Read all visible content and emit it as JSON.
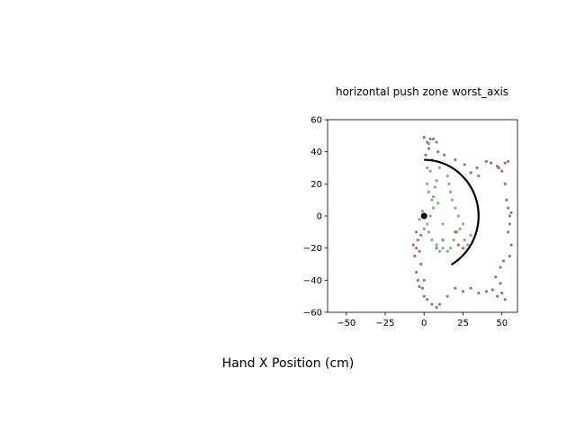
{
  "chart_data": {
    "type": "scatter",
    "title": "horizontal push zone worst_axis",
    "xlabel": "Hand X Position (cm)",
    "ylabel": "",
    "xlim": [
      -62,
      60
    ],
    "ylim": [
      -60,
      60
    ],
    "x_ticks": [
      -50,
      -25,
      0,
      25,
      50
    ],
    "y_ticks": [
      -60,
      -40,
      -20,
      0,
      20,
      40,
      60
    ],
    "x_tick_labels": [
      "−50",
      "−25",
      "0",
      "25",
      "50"
    ],
    "y_tick_labels": [
      "−60",
      "−40",
      "−20",
      "0",
      "20",
      "40",
      "60"
    ],
    "grid": false,
    "colors": {
      "outside": "#6b0f2a",
      "inside": "#1a8a1a",
      "arc": "#000000",
      "center": "#000000"
    },
    "center_point": {
      "x": 0,
      "y": 0
    },
    "arc": {
      "cx": 0,
      "cy": 0,
      "r": 35,
      "start_deg": -60,
      "end_deg": 90
    },
    "series": [
      {
        "values": [
          [
            0,
            49
          ],
          [
            2,
            46
          ],
          [
            4,
            48
          ],
          [
            6,
            48
          ],
          [
            8,
            46
          ],
          [
            3,
            42
          ],
          [
            1,
            38
          ],
          [
            9,
            40
          ],
          [
            13,
            38
          ],
          [
            20,
            35
          ],
          [
            26,
            32
          ],
          [
            30,
            27
          ],
          [
            35,
            25
          ],
          [
            34,
            30
          ],
          [
            40,
            34
          ],
          [
            43,
            33
          ],
          [
            47,
            31
          ],
          [
            52,
            33
          ],
          [
            54,
            34
          ],
          [
            50,
            28
          ],
          [
            48,
            30
          ],
          [
            52,
            20
          ],
          [
            53,
            10
          ],
          [
            54,
            5
          ],
          [
            55,
            0
          ],
          [
            56,
            2
          ],
          [
            55,
            -5
          ],
          [
            54,
            -10
          ],
          [
            56,
            -18
          ],
          [
            55,
            -25
          ],
          [
            51,
            -28
          ],
          [
            49,
            -32
          ],
          [
            46,
            -38
          ],
          [
            49,
            -42
          ],
          [
            50,
            -48
          ],
          [
            52,
            -52
          ],
          [
            47,
            -50
          ],
          [
            44,
            -46
          ],
          [
            40,
            -47
          ],
          [
            35,
            -48
          ],
          [
            30,
            -45
          ],
          [
            25,
            -47
          ],
          [
            20,
            -45
          ],
          [
            15,
            -50
          ],
          [
            10,
            -55
          ],
          [
            8,
            -57
          ],
          [
            5,
            -55
          ],
          [
            2,
            -52
          ],
          [
            0,
            -50
          ],
          [
            -1,
            -45
          ],
          [
            0,
            -40
          ],
          [
            -2,
            -30
          ],
          [
            -3,
            -22
          ],
          [
            -5,
            -20
          ],
          [
            -4,
            -15
          ],
          [
            -6,
            -25
          ],
          [
            -7,
            -18
          ],
          [
            -5,
            -10
          ],
          [
            -2,
            -12
          ],
          [
            22,
            -18
          ],
          [
            25,
            -20
          ],
          [
            20,
            -10
          ],
          [
            12,
            -15
          ],
          [
            8,
            -20
          ],
          [
            -5,
            -35
          ],
          [
            -4,
            -40
          ],
          [
            -3,
            -44
          ]
        ]
      },
      {
        "values": [
          [
            3,
            45
          ],
          [
            5,
            35
          ],
          [
            4,
            28
          ],
          [
            2,
            20
          ],
          [
            3,
            15
          ],
          [
            5,
            10
          ],
          [
            6,
            5
          ],
          [
            4,
            0
          ],
          [
            2,
            -5
          ],
          [
            3,
            -10
          ],
          [
            5,
            -15
          ],
          [
            8,
            -18
          ],
          [
            10,
            -22
          ],
          [
            12,
            -20
          ],
          [
            15,
            -22
          ],
          [
            17,
            -20
          ],
          [
            19,
            -15
          ],
          [
            21,
            -10
          ],
          [
            23,
            -8
          ],
          [
            25,
            -5
          ],
          [
            22,
            0
          ],
          [
            20,
            5
          ],
          [
            18,
            10
          ],
          [
            17,
            15
          ],
          [
            16,
            20
          ],
          [
            15,
            25
          ],
          [
            10,
            30
          ],
          [
            8,
            22
          ],
          [
            6,
            12
          ],
          [
            -1,
            3
          ],
          [
            -3,
            -2
          ],
          [
            0,
            -8
          ],
          [
            26,
            -15
          ],
          [
            28,
            -18
          ],
          [
            30,
            -12
          ],
          [
            2,
            30
          ],
          [
            7,
            18
          ],
          [
            9,
            8
          ],
          [
            12,
            -5
          ]
        ]
      }
    ]
  }
}
